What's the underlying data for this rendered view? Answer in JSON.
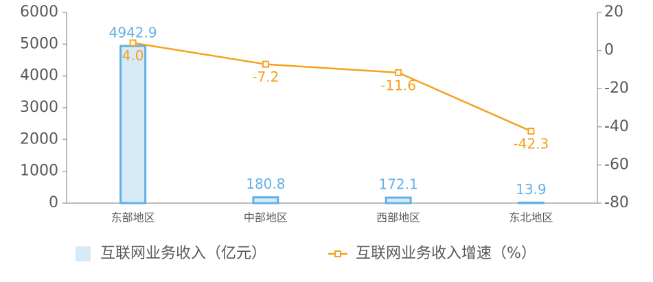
{
  "chart_data": {
    "type": "bar",
    "categories": [
      "东部地区",
      "中部地区",
      "西部地区",
      "东北地区"
    ],
    "series": [
      {
        "name": "互联网业务收入（亿元）",
        "type": "bar",
        "color": "#d6eaf8",
        "edgecolor": "#62b0e8",
        "values": [
          4942.9,
          180.8,
          172.1,
          13.9
        ]
      },
      {
        "name": "互联网业务收入增速（%）",
        "type": "line",
        "axis": "y2",
        "color": "#f5a11c",
        "values": [
          4.0,
          -7.2,
          -11.6,
          -42.3
        ],
        "value_labels": [
          "4.0",
          "-7.2",
          "-11.6",
          "-42.3"
        ]
      }
    ],
    "ylim": [
      0,
      6000
    ],
    "yticks": [
      0,
      1000,
      2000,
      3000,
      4000,
      5000,
      6000
    ],
    "y2lim": [
      -80,
      20
    ],
    "y2ticks": [
      -80,
      -60,
      -40,
      -20,
      0,
      20
    ],
    "grid": false,
    "legend": "bottom"
  }
}
